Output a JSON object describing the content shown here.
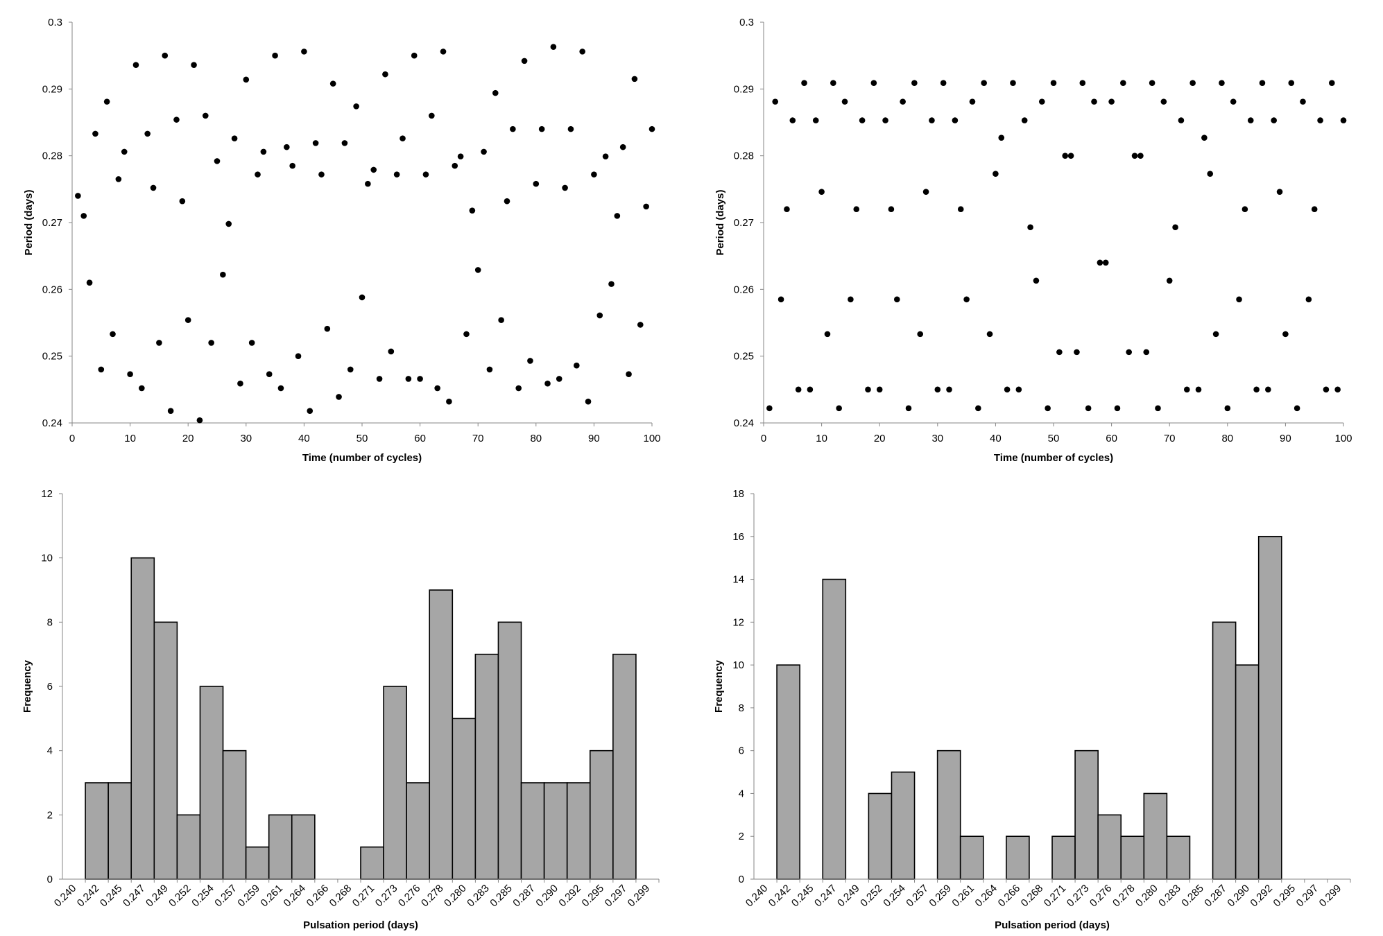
{
  "charts": [
    {
      "type": "scatter",
      "xlabel": "Time (number of cycles)",
      "ylabel": "Period (days)",
      "xlim": [
        0,
        100
      ],
      "ylim": [
        0.24,
        0.3
      ],
      "xticks": [
        0,
        10,
        20,
        30,
        40,
        50,
        60,
        70,
        80,
        90,
        100
      ],
      "xtick_labels": [
        "0",
        "10",
        "20",
        "30",
        "40",
        "50",
        "60",
        "70",
        "80",
        "90",
        "100"
      ],
      "yticks": [
        0.24,
        0.25,
        0.26,
        0.27,
        0.28,
        0.29,
        0.3
      ],
      "ytick_labels": [
        "0.24",
        "0.25",
        "0.26",
        "0.27",
        "0.28",
        "0.29",
        "0.3"
      ],
      "x": [
        1,
        2,
        3,
        4,
        5,
        6,
        7,
        8,
        9,
        10,
        11,
        12,
        13,
        14,
        15,
        16,
        17,
        18,
        19,
        20,
        21,
        22,
        23,
        24,
        25,
        26,
        27,
        28,
        29,
        30,
        31,
        32,
        33,
        34,
        35,
        36,
        37,
        38,
        39,
        40,
        41,
        42,
        43,
        44,
        45,
        46,
        47,
        48,
        49,
        50,
        51,
        52,
        53,
        54,
        55,
        56,
        57,
        58,
        59,
        60,
        61,
        62,
        63,
        64,
        65,
        66,
        67,
        68,
        69,
        70,
        71,
        72,
        73,
        74,
        75,
        76,
        77,
        78,
        79,
        80,
        81,
        82,
        83,
        84,
        85,
        86,
        87,
        88,
        89,
        90,
        91,
        92,
        93,
        94,
        95,
        96,
        97,
        98,
        99,
        100
      ],
      "y": [
        0.274,
        0.271,
        0.261,
        0.2833,
        0.248,
        0.2881,
        0.2533,
        0.2765,
        0.2806,
        0.2473,
        0.2936,
        0.2452,
        0.2833,
        0.2752,
        0.252,
        0.295,
        0.2418,
        0.2854,
        0.2732,
        0.2554,
        0.2936,
        0.2404,
        0.286,
        0.252,
        0.2792,
        0.2622,
        0.2698,
        0.2826,
        0.2459,
        0.2914,
        0.252,
        0.2772,
        0.2806,
        0.2473,
        0.295,
        0.2452,
        0.2813,
        0.2785,
        0.25,
        0.2956,
        0.2418,
        0.2819,
        0.2772,
        0.2541,
        0.2908,
        0.2439,
        0.2819,
        0.248,
        0.2874,
        0.2588,
        0.2758,
        0.2779,
        0.2466,
        0.2922,
        0.2507,
        0.2772,
        0.2826,
        0.2466,
        0.295,
        0.2466,
        0.2772,
        0.286,
        0.2452,
        0.2956,
        0.2432,
        0.2785,
        0.2799,
        0.2533,
        0.2718,
        0.2629,
        0.2806,
        0.248,
        0.2894,
        0.2554,
        0.2732,
        0.284,
        0.2452,
        0.2942,
        0.2493,
        0.2758,
        0.284,
        0.2459,
        0.2963,
        0.2466,
        0.2752,
        0.284,
        0.2486,
        0.2956,
        0.2432,
        0.2772,
        0.2561,
        0.2799,
        0.2608,
        0.271,
        0.2813,
        0.2473,
        0.2915,
        0.2547,
        0.2724,
        0.284
      ]
    },
    {
      "type": "scatter",
      "xlabel": "Time (number of cycles)",
      "ylabel": "Period (days)",
      "xlim": [
        0,
        100
      ],
      "ylim": [
        0.24,
        0.3
      ],
      "xticks": [
        0,
        10,
        20,
        30,
        40,
        50,
        60,
        70,
        80,
        90,
        100
      ],
      "xtick_labels": [
        "0",
        "10",
        "20",
        "30",
        "40",
        "50",
        "60",
        "70",
        "80",
        "90",
        "100"
      ],
      "yticks": [
        0.24,
        0.25,
        0.26,
        0.27,
        0.28,
        0.29,
        0.3
      ],
      "ytick_labels": [
        "0.24",
        "0.25",
        "0.26",
        "0.27",
        "0.28",
        "0.29",
        "0.3"
      ],
      "x": [
        1,
        2,
        3,
        4,
        5,
        6,
        7,
        8,
        9,
        10,
        11,
        12,
        13,
        14,
        15,
        16,
        17,
        18,
        19,
        20,
        21,
        22,
        23,
        24,
        25,
        26,
        27,
        28,
        29,
        30,
        31,
        32,
        33,
        34,
        35,
        36,
        37,
        38,
        39,
        40,
        41,
        42,
        43,
        44,
        45,
        46,
        47,
        48,
        49,
        50,
        51,
        52,
        53,
        54,
        55,
        56,
        57,
        58,
        59,
        60,
        61,
        62,
        63,
        64,
        65,
        66,
        67,
        68,
        69,
        70,
        71,
        72,
        73,
        74,
        75,
        76,
        77,
        78,
        79,
        80,
        81,
        82,
        83,
        84,
        85,
        86,
        87,
        88,
        89,
        90,
        91,
        92,
        93,
        94,
        95,
        96,
        97,
        98,
        99,
        100
      ],
      "y": [
        0.2422,
        0.2881,
        0.2585,
        0.272,
        0.2853,
        0.245,
        0.2909,
        0.245,
        0.2853,
        0.2746,
        0.2533,
        0.2909,
        0.2422,
        0.2881,
        0.2585,
        0.272,
        0.2853,
        0.245,
        0.2909,
        0.245,
        0.2853,
        0.272,
        0.2585,
        0.2881,
        0.2422,
        0.2909,
        0.2533,
        0.2746,
        0.2853,
        0.245,
        0.2909,
        0.245,
        0.2853,
        0.272,
        0.2585,
        0.2881,
        0.2422,
        0.2909,
        0.2533,
        0.2773,
        0.2827,
        0.245,
        0.2909,
        0.245,
        0.2853,
        0.2693,
        0.2613,
        0.2881,
        0.2422,
        0.2909,
        0.2506,
        0.28,
        0.28,
        0.2506,
        0.2909,
        0.2422,
        0.2881,
        0.264,
        0.264,
        0.2881,
        0.2422,
        0.2909,
        0.2506,
        0.28,
        0.28,
        0.2506,
        0.2909,
        0.2422,
        0.2881,
        0.2613,
        0.2693,
        0.2853,
        0.245,
        0.2909,
        0.245,
        0.2827,
        0.2773,
        0.2533,
        0.2909,
        0.2422,
        0.2881,
        0.2585,
        0.272,
        0.2853,
        0.245,
        0.2909,
        0.245,
        0.2853,
        0.2746,
        0.2533,
        0.2909,
        0.2422,
        0.2881,
        0.2585,
        0.272,
        0.2853,
        0.245,
        0.2909,
        0.245,
        0.2853
      ]
    },
    {
      "type": "bar",
      "xlabel": "Pulsation period (days)",
      "ylabel": "Frequency",
      "ylim": [
        0,
        12
      ],
      "yticks": [
        0,
        2,
        4,
        6,
        8,
        10,
        12
      ],
      "ytick_labels": [
        "0",
        "2",
        "4",
        "6",
        "8",
        "10",
        "12"
      ],
      "categories": [
        "0.240",
        "0.242",
        "0.245",
        "0.247",
        "0.249",
        "0.252",
        "0.254",
        "0.257",
        "0.259",
        "0.261",
        "0.264",
        "0.266",
        "0.268",
        "0.271",
        "0.273",
        "0.276",
        "0.278",
        "0.280",
        "0.283",
        "0.285",
        "0.287",
        "0.290",
        "0.292",
        "0.295",
        "0.297",
        "0.299"
      ],
      "values": [
        0,
        3,
        3,
        10,
        8,
        2,
        6,
        4,
        1,
        2,
        2,
        0,
        0,
        1,
        6,
        3,
        9,
        5,
        7,
        8,
        3,
        3,
        3,
        4,
        7,
        0
      ]
    },
    {
      "type": "bar",
      "xlabel": "Pulsation period (days)",
      "ylabel": "Frequency",
      "ylim": [
        0,
        18
      ],
      "yticks": [
        0,
        2,
        4,
        6,
        8,
        10,
        12,
        14,
        16,
        18
      ],
      "ytick_labels": [
        "0",
        "2",
        "4",
        "6",
        "8",
        "10",
        "12",
        "14",
        "16",
        "18"
      ],
      "categories": [
        "0.240",
        "0.242",
        "0.245",
        "0.247",
        "0.249",
        "0.252",
        "0.254",
        "0.257",
        "0.259",
        "0.261",
        "0.264",
        "0.266",
        "0.268",
        "0.271",
        "0.273",
        "0.276",
        "0.278",
        "0.280",
        "0.283",
        "0.285",
        "0.287",
        "0.290",
        "0.292",
        "0.295",
        "0.297",
        "0.299"
      ],
      "values": [
        0,
        10,
        0,
        14,
        0,
        4,
        5,
        0,
        6,
        2,
        0,
        2,
        0,
        2,
        6,
        3,
        2,
        4,
        2,
        0,
        12,
        10,
        16,
        0,
        0,
        0
      ]
    }
  ],
  "style": {
    "marker_color": "#000000",
    "bar_fill": "#a6a6a6",
    "bar_stroke": "#000000",
    "axis_color": "#868686"
  }
}
